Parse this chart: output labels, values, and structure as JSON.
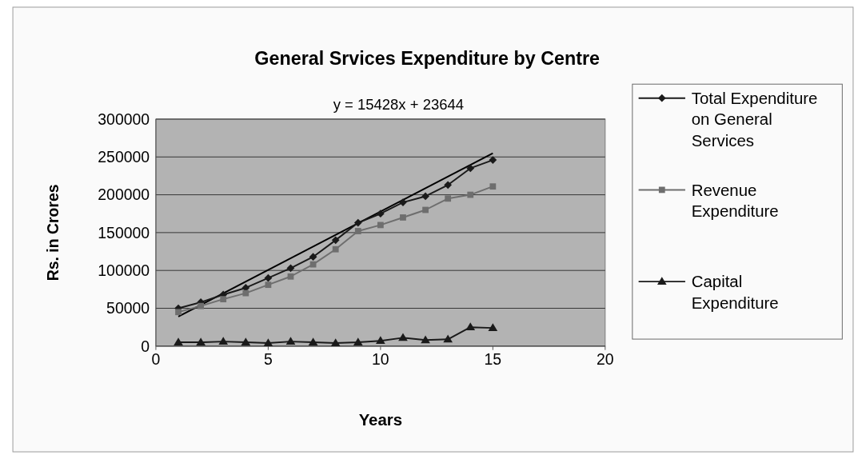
{
  "chart_data": {
    "type": "line",
    "title": "General Srvices Expenditure  by Centre",
    "xlabel": "Years",
    "ylabel": "Rs. in Crores",
    "x": [
      1,
      2,
      3,
      4,
      5,
      6,
      7,
      8,
      9,
      10,
      11,
      12,
      13,
      14,
      15
    ],
    "xlim": [
      0,
      20
    ],
    "xticks": [
      0,
      5,
      10,
      15,
      20
    ],
    "ylim": [
      0,
      300000
    ],
    "yticks": [
      0,
      50000,
      100000,
      150000,
      200000,
      250000,
      300000
    ],
    "grid": "y",
    "legend": "right",
    "series": [
      {
        "name": "Total Expenditure on General Services",
        "color": "#1a1a1a",
        "marker": "diamond",
        "values": [
          50000,
          58000,
          68000,
          77000,
          90000,
          103000,
          118000,
          140000,
          163000,
          175000,
          190000,
          198000,
          213000,
          235000,
          246000
        ]
      },
      {
        "name": "Revenue Expenditure",
        "color": "#6e6e6e",
        "marker": "square",
        "values": [
          45000,
          53000,
          62000,
          70000,
          81000,
          92000,
          108000,
          128000,
          152000,
          160000,
          170000,
          180000,
          195000,
          200000,
          211000
        ]
      },
      {
        "name": "Capital Expenditure",
        "color": "#1a1a1a",
        "marker": "triangle",
        "values": [
          5000,
          5000,
          6000,
          5000,
          4000,
          6000,
          5000,
          4000,
          5000,
          7000,
          11000,
          8000,
          9000,
          25000,
          24000
        ]
      },
      {
        "type": "line",
        "color": "#000000",
        "marker": "none",
        "x": [
          1,
          15
        ],
        "values": [
          39000,
          255000
        ]
      }
    ],
    "annotations": [
      "y = 15428x + 23644"
    ]
  }
}
